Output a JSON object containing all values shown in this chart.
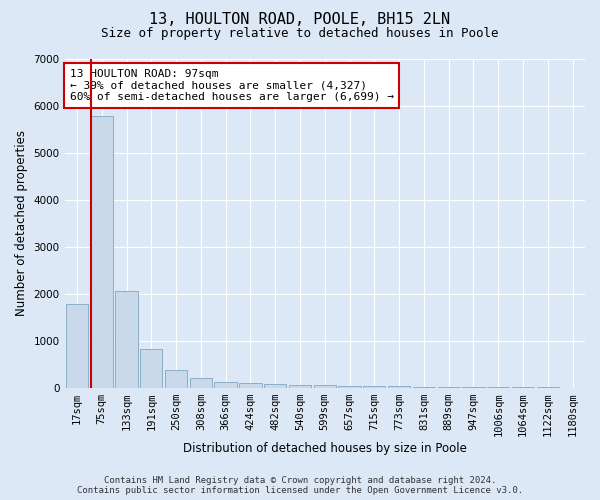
{
  "title": "13, HOULTON ROAD, POOLE, BH15 2LN",
  "subtitle": "Size of property relative to detached houses in Poole",
  "xlabel": "Distribution of detached houses by size in Poole",
  "ylabel": "Number of detached properties",
  "bar_labels": [
    "17sqm",
    "75sqm",
    "133sqm",
    "191sqm",
    "250sqm",
    "308sqm",
    "366sqm",
    "424sqm",
    "482sqm",
    "540sqm",
    "599sqm",
    "657sqm",
    "715sqm",
    "773sqm",
    "831sqm",
    "889sqm",
    "947sqm",
    "1006sqm",
    "1064sqm",
    "1122sqm",
    "1180sqm"
  ],
  "bar_values": [
    1780,
    5780,
    2060,
    830,
    370,
    210,
    120,
    110,
    75,
    60,
    50,
    45,
    40,
    30,
    25,
    20,
    15,
    12,
    10,
    8,
    5
  ],
  "bar_color": "#c9d9ea",
  "bar_edge_color": "#8aafc8",
  "red_line_color": "#cc0000",
  "annotation_text": "13 HOULTON ROAD: 97sqm\n← 39% of detached houses are smaller (4,327)\n60% of semi-detached houses are larger (6,699) →",
  "annotation_box_color": "#ffffff",
  "annotation_box_edge_color": "#cc0000",
  "ylim": [
    0,
    7000
  ],
  "yticks": [
    0,
    1000,
    2000,
    3000,
    4000,
    5000,
    6000,
    7000
  ],
  "bg_color": "#dce8f5",
  "plot_bg_color": "#dce8f5",
  "grid_color": "#ffffff",
  "footer_line1": "Contains HM Land Registry data © Crown copyright and database right 2024.",
  "footer_line2": "Contains public sector information licensed under the Open Government Licence v3.0.",
  "title_fontsize": 11,
  "subtitle_fontsize": 9,
  "axis_label_fontsize": 8.5,
  "tick_fontsize": 7.5,
  "annotation_fontsize": 8,
  "footer_fontsize": 6.5,
  "red_line_bar_index": 1
}
